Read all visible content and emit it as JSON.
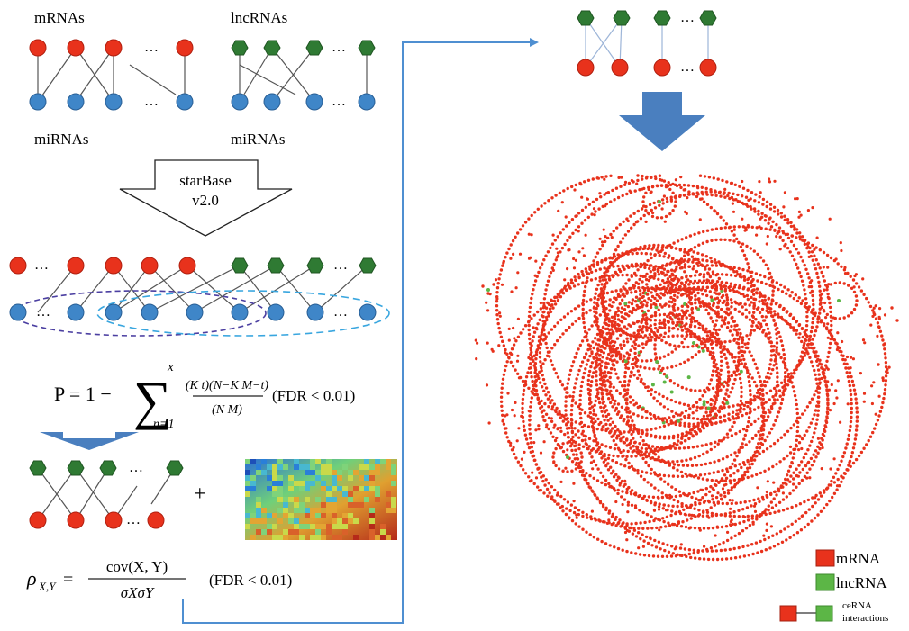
{
  "colors": {
    "mrna": "#e8321c",
    "mirna": "#3f86c8",
    "lncrna": "#2f7a33",
    "lncrna_legend": "#5cb646",
    "arrow_blue": "#4a7fbf",
    "flow_line": "#4f8fd1",
    "ellipse_purple": "#4b3fa1",
    "ellipse_cyan": "#39a6df",
    "edge": "#555555"
  },
  "step1": {
    "mrna_label": "mRNAs",
    "lncrna_label": "lncRNAs",
    "mirna_label_left": "miRNAs",
    "mirna_label_right": "miRNAs",
    "ellipsis": "…"
  },
  "database": {
    "line1": "starBase",
    "line2": "v2.0"
  },
  "hypergeometric": {
    "lhs": "P = 1 −",
    "sum_upper": "x",
    "sum_lower": "n=1",
    "numerator": "(K t)(N−K M−t)",
    "denominator": "(N M)",
    "condition": "(FDR < 0.01)"
  },
  "correlation": {
    "lhs_symbol": "ρ",
    "lhs_subscript": "X,Y",
    "equals": "=",
    "numerator": "cov(X, Y)",
    "denominator": "σXσY",
    "condition": "(FDR < 0.01)"
  },
  "plus_sign": "+",
  "legend": {
    "items": [
      {
        "label": "mRNA",
        "color": "#e8321c"
      },
      {
        "label": "lncRNA",
        "color": "#5cb646"
      }
    ],
    "interaction_line1": "ceRNA",
    "interaction_line2": "interactions"
  }
}
